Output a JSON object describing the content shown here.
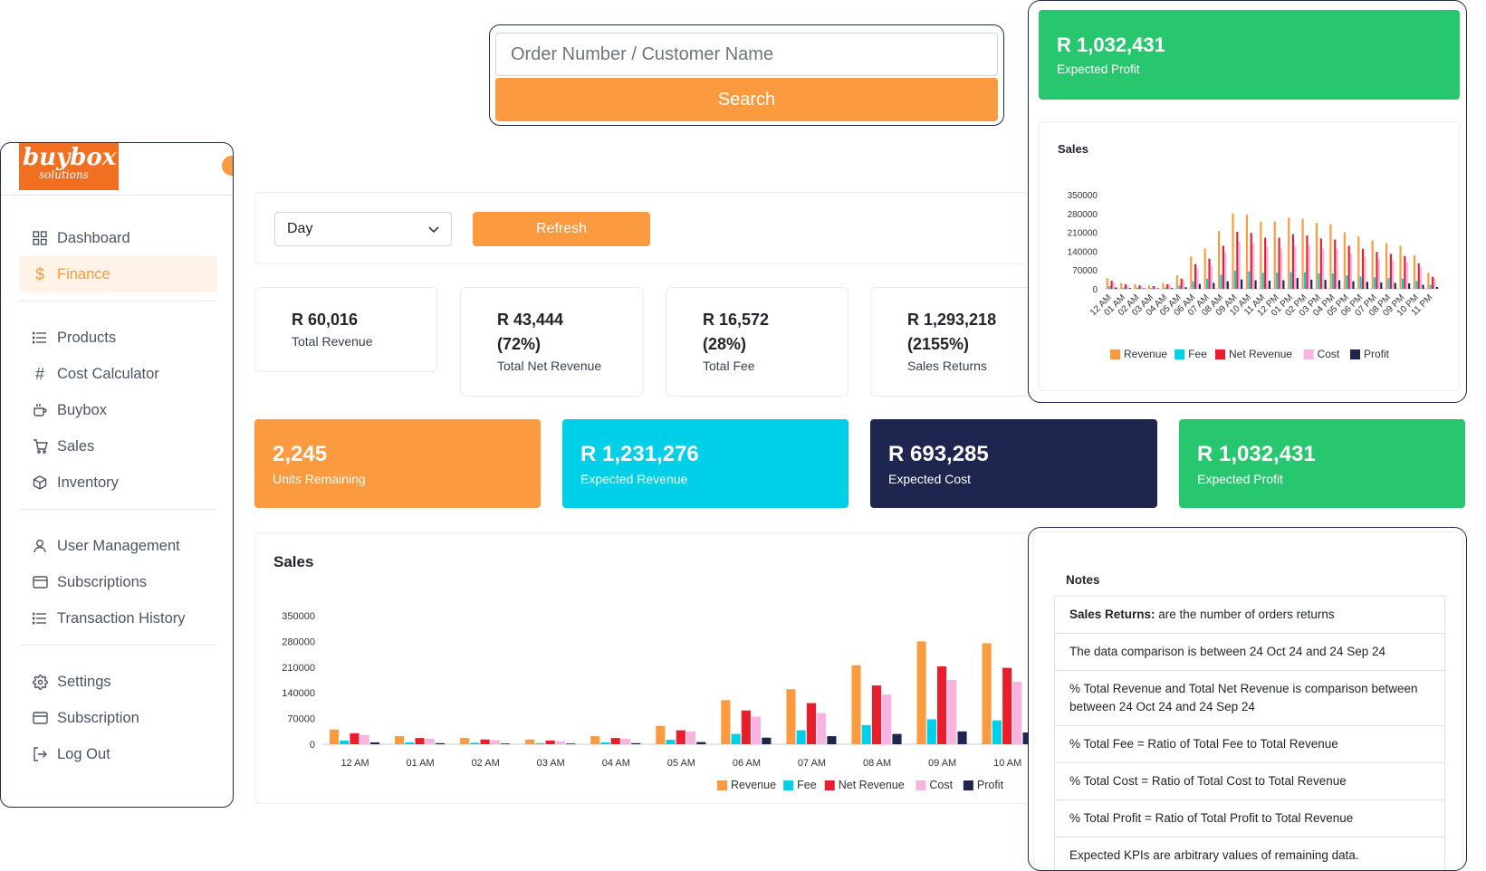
{
  "search": {
    "placeholder": "Order Number / Customer Name",
    "button_label": "Search"
  },
  "brand": {
    "logo_text": "buybox",
    "logo_sub": "solutions"
  },
  "sidebar": {
    "items": [
      {
        "label": "Dashboard",
        "icon": "grid-icon"
      },
      {
        "label": "Finance",
        "icon": "dollar-icon",
        "active": true
      },
      {
        "label": "Products",
        "icon": "list-icon"
      },
      {
        "label": "Cost Calculator",
        "icon": "hash-icon"
      },
      {
        "label": "Buybox",
        "icon": "cup-icon"
      },
      {
        "label": "Sales",
        "icon": "cart-icon"
      },
      {
        "label": "Inventory",
        "icon": "box-icon"
      },
      {
        "label": "User Management",
        "icon": "user-icon"
      },
      {
        "label": "Subscriptions",
        "icon": "card-icon"
      },
      {
        "label": "Transaction History",
        "icon": "list-icon"
      },
      {
        "label": "Settings",
        "icon": "gear-icon"
      },
      {
        "label": "Subscription",
        "icon": "card-icon"
      },
      {
        "label": "Log Out",
        "icon": "logout-icon"
      }
    ]
  },
  "filters": {
    "period": "Day",
    "refresh_label": "Refresh"
  },
  "kpis": [
    {
      "value": "R 60,016",
      "label": "Total Revenue"
    },
    {
      "value": "R 43,444",
      "pct": "(72%)",
      "label": "Total Net Revenue"
    },
    {
      "value": "R 16,572",
      "pct": "(28%)",
      "label": "Total Fee"
    },
    {
      "value": "R 1,293,218",
      "pct": "(2155%)",
      "label": "Sales Returns"
    }
  ],
  "expected": [
    {
      "value": "2,245",
      "label": "Units Remaining",
      "color": "#fb9a3e"
    },
    {
      "value": "R 1,231,276",
      "label": "Expected Revenue",
      "color": "#00cfe8"
    },
    {
      "value": "R 693,285",
      "label": "Expected Cost",
      "color": "#1e2650"
    },
    {
      "value": "R 1,032,431",
      "label": "Expected Profit",
      "color": "#28c76f"
    }
  ],
  "top_right": {
    "value": "R 1,032,431",
    "label": "Expected Profit",
    "chart_title": "Sales"
  },
  "notes": {
    "title": "Notes",
    "items": [
      {
        "bold": "Sales Returns:",
        "text": " are the number of orders returns"
      },
      {
        "bold": "",
        "text": "The data comparison is between 24 Oct 24 and 24 Sep 24"
      },
      {
        "bold": "",
        "text": "% Total Revenue and Total Net Revenue is comparison between between 24 Oct 24 and 24 Sep 24"
      },
      {
        "bold": "",
        "text": "% Total Fee = Ratio of Total Fee to Total Revenue"
      },
      {
        "bold": "",
        "text": "% Total Cost = Ratio of Total Cost to Total Revenue"
      },
      {
        "bold": "",
        "text": "% Total Profit = Ratio of Total Profit to Total Revenue"
      },
      {
        "bold": "",
        "text": "Expected KPIs are arbitrary values of remaining data."
      }
    ]
  },
  "chart_data": {
    "type": "bar",
    "title": "Sales",
    "categories": [
      "12 AM",
      "01 AM",
      "02 AM",
      "03 AM",
      "04 AM",
      "05 AM",
      "06 AM",
      "07 AM",
      "08 AM",
      "09 AM",
      "10 AM",
      "11 AM",
      "12 PM",
      "01 PM",
      "02 PM",
      "03 PM",
      "04 PM",
      "05 PM",
      "06 PM",
      "07 PM",
      "08 PM",
      "09 PM",
      "10 PM",
      "11 PM"
    ],
    "yticks": [
      0,
      70000,
      140000,
      210000,
      280000,
      350000
    ],
    "ylim": [
      0,
      350000
    ],
    "legend": "bottom",
    "series": [
      {
        "name": "Revenue",
        "color": "#fb9a3e",
        "values": [
          40000,
          22000,
          17000,
          13000,
          22000,
          50000,
          120000,
          150000,
          215000,
          280000,
          275000,
          250000,
          250000,
          265000,
          260000,
          245000,
          240000,
          210000,
          195000,
          180000,
          170000,
          160000,
          125000,
          60000
        ]
      },
      {
        "name": "Fee",
        "color": "#00cfe8",
        "values": [
          10000,
          5000,
          4000,
          3000,
          5000,
          12000,
          28000,
          38000,
          52000,
          68000,
          65000,
          60000,
          60000,
          62000,
          62000,
          58000,
          57000,
          50000,
          46000,
          43000,
          40000,
          38000,
          30000,
          15000
        ]
      },
      {
        "name": "Net Revenue",
        "color": "#ea1d2c",
        "values": [
          30000,
          17000,
          13000,
          10000,
          17000,
          38000,
          92000,
          112000,
          160000,
          212000,
          208000,
          190000,
          190000,
          203000,
          198000,
          187000,
          183000,
          160000,
          149000,
          137000,
          130000,
          122000,
          95000,
          45000
        ]
      },
      {
        "name": "Cost",
        "color": "#f8b4e0",
        "values": [
          25000,
          15000,
          11000,
          8000,
          15000,
          35000,
          75000,
          85000,
          135000,
          175000,
          170000,
          155000,
          150000,
          160000,
          162000,
          150000,
          148000,
          130000,
          120000,
          112000,
          105000,
          100000,
          80000,
          38000
        ]
      },
      {
        "name": "Profit",
        "color": "#1e2650",
        "values": [
          5000,
          3000,
          2000,
          2000,
          3000,
          6000,
          18000,
          22000,
          28000,
          35000,
          32000,
          30000,
          32000,
          40000,
          34000,
          33000,
          32000,
          28000,
          26000,
          24000,
          22000,
          20000,
          15000,
          7000
        ]
      }
    ]
  }
}
